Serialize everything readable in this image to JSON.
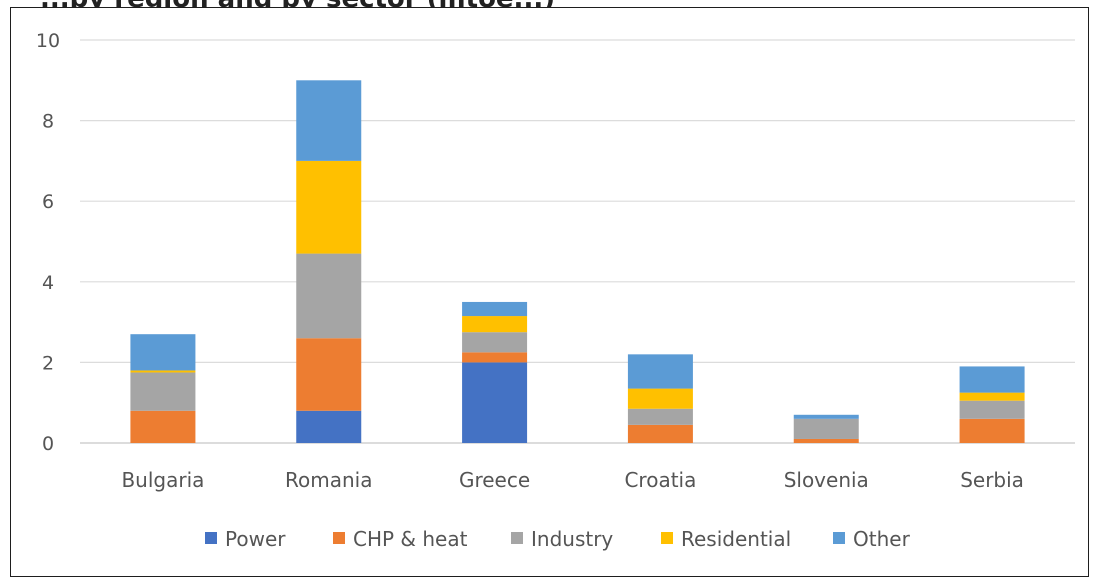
{
  "chart_data": {
    "type": "bar",
    "stacked": true,
    "title_partial": "...by region and by sector (mtoe...)",
    "categories": [
      "Bulgaria",
      "Romania",
      "Greece",
      "Croatia",
      "Slovenia",
      "Serbia"
    ],
    "series": [
      {
        "name": "Power",
        "color": "#4472C4",
        "values": [
          0,
          0.8,
          2.0,
          0,
          0,
          0
        ]
      },
      {
        "name": "CHP & heat",
        "color": "#ED7D31",
        "values": [
          0.8,
          1.8,
          0.25,
          0.45,
          0.1,
          0.6
        ]
      },
      {
        "name": "Industry",
        "color": "#A5A5A5",
        "values": [
          0.95,
          2.1,
          0.5,
          0.4,
          0.5,
          0.45
        ]
      },
      {
        "name": "Residential",
        "color": "#FFC000",
        "values": [
          0.05,
          2.3,
          0.4,
          0.5,
          0,
          0.2
        ]
      },
      {
        "name": "Other",
        "color": "#5B9BD5",
        "values": [
          0.9,
          2.0,
          0.35,
          0.85,
          0.1,
          0.65
        ]
      }
    ],
    "yticks": [
      "0",
      "2",
      "4",
      "6",
      "8",
      "10"
    ],
    "ylim": [
      0,
      10
    ],
    "grid": true,
    "legend_position": "bottom"
  }
}
